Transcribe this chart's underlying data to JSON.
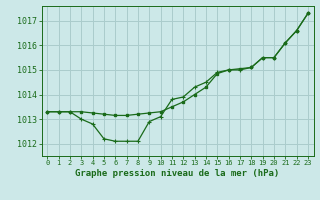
{
  "line_wavy": [
    1013.3,
    1013.3,
    1013.3,
    1013.0,
    1012.8,
    1012.2,
    1012.1,
    1012.1,
    1012.1,
    1012.9,
    1013.1,
    1013.8,
    1013.9,
    1014.3,
    1014.5,
    1014.9,
    1015.0,
    1015.0,
    1015.1,
    1015.5,
    1015.5,
    1016.1,
    1016.6,
    1017.3
  ],
  "line_straight": [
    1013.3,
    1013.3,
    1013.3,
    1013.3,
    1013.25,
    1013.2,
    1013.15,
    1013.15,
    1013.2,
    1013.25,
    1013.3,
    1013.5,
    1013.7,
    1014.0,
    1014.3,
    1014.85,
    1015.0,
    1015.05,
    1015.1,
    1015.5,
    1015.5,
    1016.1,
    1016.6,
    1017.3
  ],
  "x": [
    0,
    1,
    2,
    3,
    4,
    5,
    6,
    7,
    8,
    9,
    10,
    11,
    12,
    13,
    14,
    15,
    16,
    17,
    18,
    19,
    20,
    21,
    22,
    23
  ],
  "line_color": "#1a6b1a",
  "bg_color": "#cce8e8",
  "grid_color": "#aacccc",
  "xlabel": "Graphe pression niveau de la mer (hPa)",
  "ylim_min": 1011.5,
  "ylim_max": 1017.6,
  "yticks": [
    1012,
    1013,
    1014,
    1015,
    1016,
    1017
  ],
  "xticks": [
    0,
    1,
    2,
    3,
    4,
    5,
    6,
    7,
    8,
    9,
    10,
    11,
    12,
    13,
    14,
    15,
    16,
    17,
    18,
    19,
    20,
    21,
    22,
    23
  ]
}
